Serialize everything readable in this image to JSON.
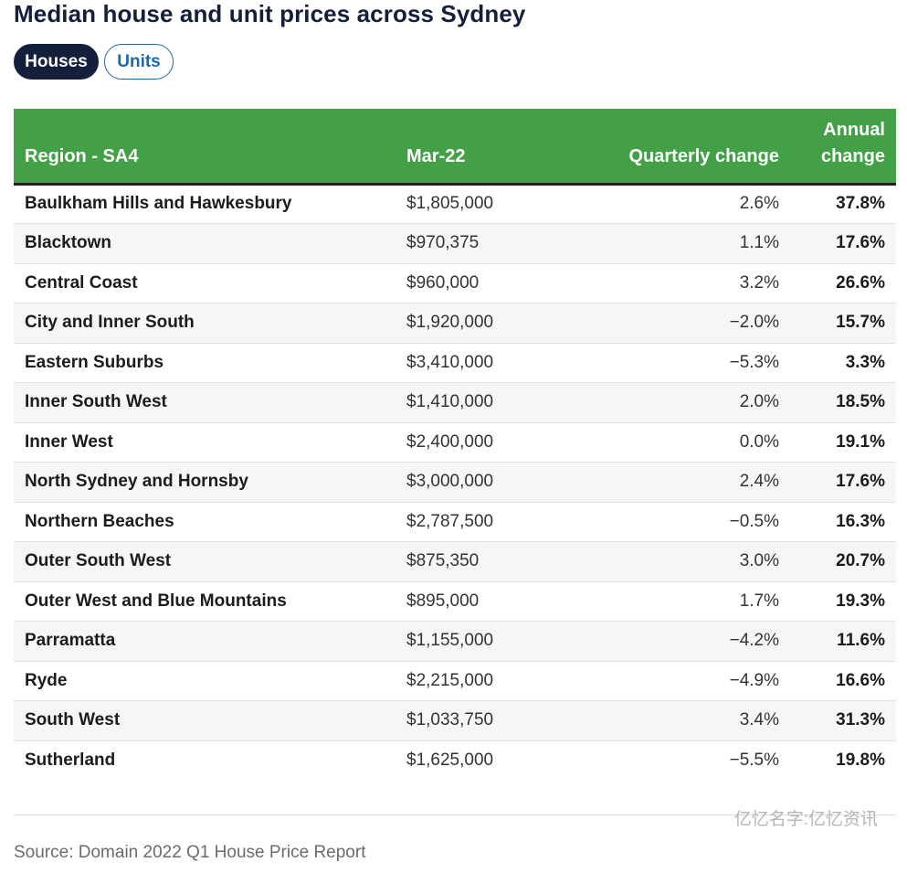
{
  "title": "Median house and unit prices across Sydney",
  "toggles": {
    "houses": "Houses",
    "units": "Units"
  },
  "table": {
    "headers": {
      "region": "Region - SA4",
      "price": "Mar-22",
      "quarterly": "Quarterly change",
      "annual_line1": "Annual",
      "annual_line2": "change"
    },
    "rows": [
      {
        "region": "Baulkham Hills and Hawkesbury",
        "price": "$1,805,000",
        "quarterly": "2.6%",
        "annual": "37.8%"
      },
      {
        "region": "Blacktown",
        "price": "$970,375",
        "quarterly": "1.1%",
        "annual": "17.6%"
      },
      {
        "region": "Central Coast",
        "price": "$960,000",
        "quarterly": "3.2%",
        "annual": "26.6%"
      },
      {
        "region": "City and Inner South",
        "price": "$1,920,000",
        "quarterly": "−2.0%",
        "annual": "15.7%"
      },
      {
        "region": "Eastern Suburbs",
        "price": "$3,410,000",
        "quarterly": "−5.3%",
        "annual": "3.3%"
      },
      {
        "region": "Inner South West",
        "price": "$1,410,000",
        "quarterly": "2.0%",
        "annual": "18.5%"
      },
      {
        "region": "Inner West",
        "price": "$2,400,000",
        "quarterly": "0.0%",
        "annual": "19.1%"
      },
      {
        "region": "North Sydney and Hornsby",
        "price": "$3,000,000",
        "quarterly": "2.4%",
        "annual": "17.6%"
      },
      {
        "region": "Northern Beaches",
        "price": "$2,787,500",
        "quarterly": "−0.5%",
        "annual": "16.3%"
      },
      {
        "region": "Outer South West",
        "price": "$875,350",
        "quarterly": "3.0%",
        "annual": "20.7%"
      },
      {
        "region": "Outer West and Blue Mountains",
        "price": "$895,000",
        "quarterly": "1.7%",
        "annual": "19.3%"
      },
      {
        "region": "Parramatta",
        "price": "$1,155,000",
        "quarterly": "−4.2%",
        "annual": "11.6%"
      },
      {
        "region": "Ryde",
        "price": "$2,215,000",
        "quarterly": "−4.9%",
        "annual": "16.6%"
      },
      {
        "region": "South West",
        "price": "$1,033,750",
        "quarterly": "3.4%",
        "annual": "31.3%"
      },
      {
        "region": "Sutherland",
        "price": "$1,625,000",
        "quarterly": "−5.5%",
        "annual": "19.8%"
      }
    ]
  },
  "watermark": "亿忆名字:亿忆资讯",
  "source": "Source: Domain 2022 Q1 House Price Report",
  "colors": {
    "header_green": "#43a047",
    "navy": "#14203b",
    "link_blue": "#1d6aa8"
  }
}
